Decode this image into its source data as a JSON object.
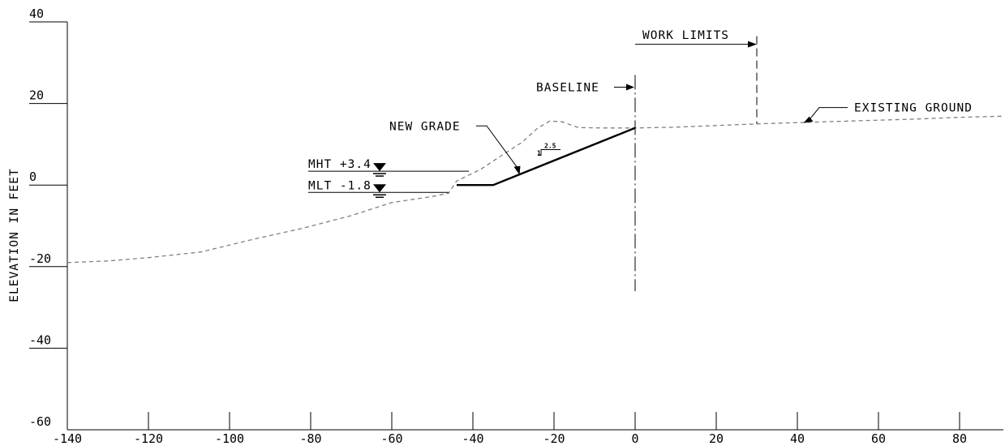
{
  "chart_data": {
    "type": "line",
    "title": "",
    "xlabel": "",
    "ylabel": "ELEVATION IN FEET",
    "xlim": [
      -140,
      90
    ],
    "ylim": [
      -60,
      40
    ],
    "x_ticks": [
      "-140",
      "-120",
      "-100",
      "-80",
      "-60",
      "-40",
      "-20",
      "0",
      "20",
      "40",
      "60",
      "80"
    ],
    "y_ticks": [
      "40",
      "20",
      "0",
      "-20",
      "-40",
      "-60"
    ],
    "series": [
      {
        "name": "EXISTING GROUND",
        "style": "dashed",
        "color": "#808080",
        "points": [
          [
            -140,
            -19
          ],
          [
            -130,
            -18.6
          ],
          [
            -120,
            -17.8
          ],
          [
            -107,
            -16.4
          ],
          [
            -95,
            -13.5
          ],
          [
            -82,
            -10.6
          ],
          [
            -70,
            -7.5
          ],
          [
            -60,
            -4.3
          ],
          [
            -50,
            -2.8
          ],
          [
            -46,
            -2
          ],
          [
            -44,
            1
          ],
          [
            -38,
            3.9
          ],
          [
            -33,
            7.2
          ],
          [
            -28,
            10.4
          ],
          [
            -24,
            14
          ],
          [
            -21,
            15.7
          ],
          [
            -18,
            15.5
          ],
          [
            -14,
            14.1
          ],
          [
            -8,
            14
          ],
          [
            0,
            14
          ],
          [
            10,
            14.2
          ],
          [
            20,
            14.6
          ],
          [
            30,
            15
          ],
          [
            40,
            15.3
          ],
          [
            50,
            15.6
          ],
          [
            60,
            15.9
          ],
          [
            70,
            16.2
          ],
          [
            80,
            16.6
          ],
          [
            91,
            16.9
          ]
        ]
      },
      {
        "name": "NEW GRADE",
        "style": "solid",
        "color": "#000000",
        "points": [
          [
            -44,
            0
          ],
          [
            -35,
            0
          ],
          [
            0,
            14
          ]
        ]
      }
    ],
    "annotations": {
      "new_grade": "NEW GRADE",
      "slope_rise": "1",
      "slope_run": "2.5",
      "mht": "MHT +3.4",
      "mlt": "MLT -1.8",
      "mht_elev": 3.4,
      "mlt_elev": -1.8,
      "baseline": "BASELINE",
      "baseline_x": 0,
      "work_limits": "WORK LIMITS",
      "work_limits_x": 30,
      "existing_ground": "EXISTING GROUND"
    }
  }
}
